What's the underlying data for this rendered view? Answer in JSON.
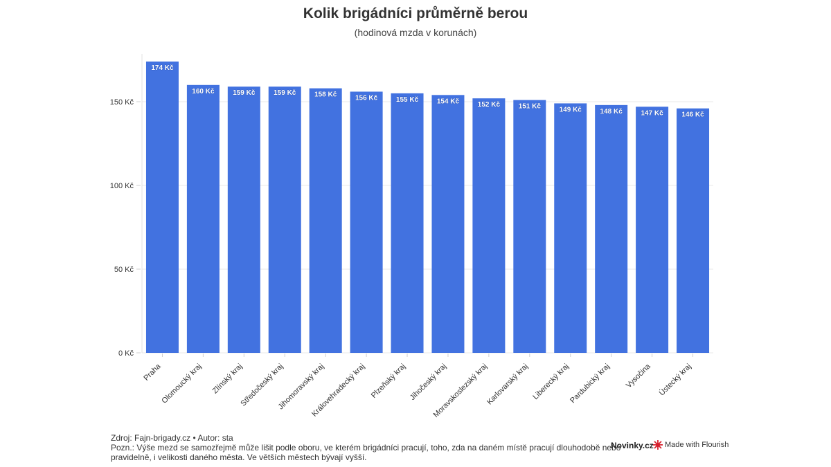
{
  "title": "Kolik brigádníci průměrně berou",
  "subtitle": "(hodinová mzda v korunách)",
  "footer": {
    "source": "Zdroj: Fajn-brigady.cz • Autor: sta",
    "note_line1": "Pozn.: Výše mezd se samozřejmě může lišit podle oboru, ve kterém brigádníci pracují, toho, zda na daném místě pracují dlouhodobě nebo",
    "note_line2": "pravidelně, i velikosti daného města. Ve větších městech bývají vyšší.",
    "brand": "Novinky.cz",
    "flourish": "Made with Flourish",
    "flourish_icon": "flourish-logo-icon"
  },
  "colors": {
    "bar": "#4272e0",
    "grid": "#e8e8e8",
    "label": "#ffffff",
    "text": "#333333"
  },
  "chart_data": {
    "type": "bar",
    "categories": [
      "Praha",
      "Olomoucký kraj",
      "Zlínský kraj",
      "Středočeský kraj",
      "Jihomoravský kraj",
      "Královehradecký kraj",
      "Plzeňský kraj",
      "Jihočeský kraj",
      "Moravskoslezský kraj",
      "Karlovarský kraj",
      "Liberecký kraj",
      "Pardubický kraj",
      "Vysočina",
      "Ústecký kraj"
    ],
    "values": [
      174,
      160,
      159,
      159,
      158,
      156,
      155,
      154,
      152,
      151,
      149,
      148,
      147,
      146
    ],
    "value_labels": [
      "174 Kč",
      "160 Kč",
      "159 Kč",
      "159 Kč",
      "158 Kč",
      "156 Kč",
      "155 Kč",
      "154 Kč",
      "152 Kč",
      "151 Kč",
      "149 Kč",
      "148 Kč",
      "147 Kč",
      "146 Kč"
    ],
    "yticks": [
      0,
      50,
      100,
      150
    ],
    "ytick_labels": [
      "0 Kč",
      "50 Kč",
      "100 Kč",
      "150 Kč"
    ],
    "ylim": [
      0,
      180
    ],
    "grid": true,
    "xlabel": "",
    "ylabel": ""
  }
}
